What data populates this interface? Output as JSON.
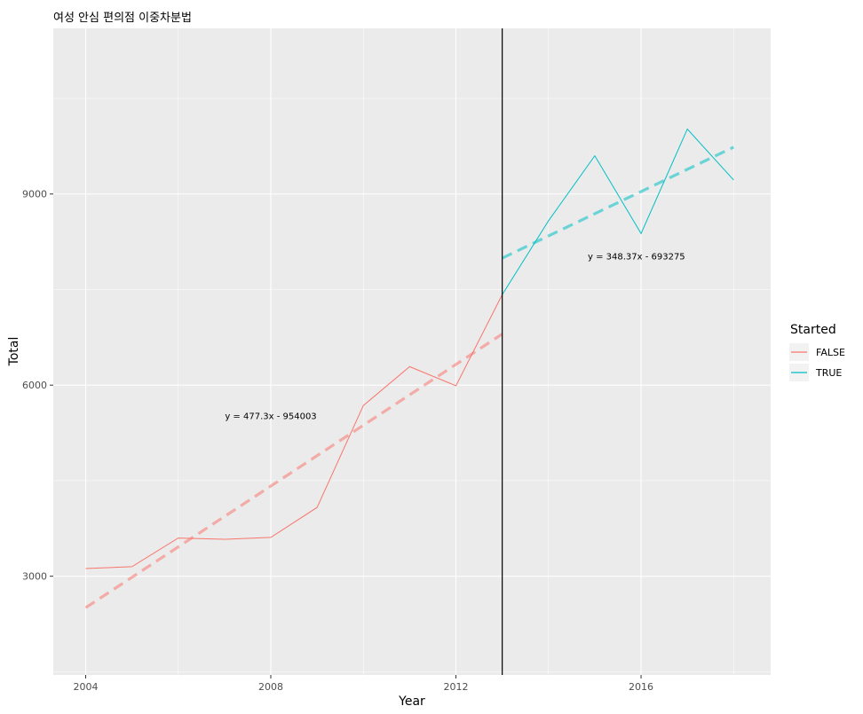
{
  "chart_data": {
    "type": "line",
    "title": "여성 안심 편의점 이중차분법",
    "xlabel": "Year",
    "ylabel": "Total",
    "xlim": [
      2003.3,
      2018.8
    ],
    "ylim": [
      1450,
      11600
    ],
    "x_ticks": [
      2004,
      2008,
      2012,
      2016
    ],
    "x_tick_labels": [
      "2004",
      "2008",
      "2012",
      "2016"
    ],
    "y_ticks": [
      3000,
      6000,
      9000
    ],
    "y_tick_labels": [
      "3000",
      "6000",
      "9000"
    ],
    "grid": true,
    "vline_x": 2013,
    "legend": {
      "title": "Started",
      "position": "right",
      "entries": [
        "FALSE",
        "TRUE"
      ]
    },
    "series": [
      {
        "name": "FALSE",
        "color": "#F8766D",
        "x": [
          2004,
          2005,
          2006,
          2007,
          2008,
          2009,
          2010,
          2011,
          2012,
          2013
        ],
        "y": [
          3120,
          3150,
          3600,
          3580,
          3610,
          4080,
          5680,
          6290,
          5990,
          7420
        ]
      },
      {
        "name": "TRUE",
        "color": "#00BFC4",
        "x": [
          2013,
          2014,
          2015,
          2016,
          2017,
          2018
        ],
        "y": [
          7420,
          8580,
          9600,
          8380,
          10020,
          9220
        ]
      }
    ],
    "trend_lines": [
      {
        "series": "FALSE",
        "color": "#F8766D",
        "slope": 477.3,
        "intercept": -954003,
        "x_range": [
          2004,
          2013
        ],
        "label": "y = 477.3x - 954003",
        "label_at": [
          2008.0,
          5520
        ]
      },
      {
        "series": "TRUE",
        "color": "#00BFC4",
        "slope": 348.37,
        "intercept": -693275,
        "x_range": [
          2013,
          2018
        ],
        "label": "y = 348.37x - 693275",
        "label_at": [
          2015.9,
          8030
        ]
      }
    ]
  }
}
